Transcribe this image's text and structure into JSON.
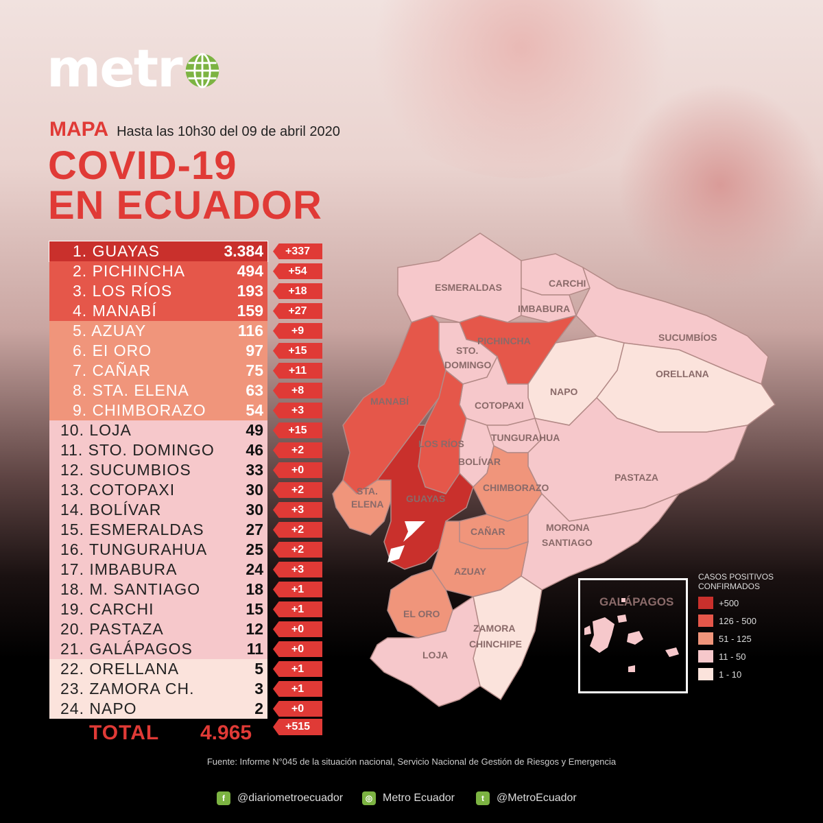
{
  "brand": {
    "logo_text": "metr",
    "logo_globe": "globe-icon"
  },
  "header": {
    "mapa": "MAPA",
    "subtitle": "Hasta las 10h30 del 09 de abril 2020",
    "title_line1": "COVID-19",
    "title_line2": "EN ECUADOR"
  },
  "colors": {
    "c500": "#c9302c",
    "c126": "#e5574a",
    "c51": "#f0957b",
    "c11": "#f6c8cb",
    "c1": "#fbe3dc",
    "accent": "#e03a36"
  },
  "rows": [
    {
      "label": "1. GUAYAS",
      "value": "3.384",
      "delta": "+337",
      "tier": "c500"
    },
    {
      "label": "2. PICHINCHA",
      "value": "494",
      "delta": "+54",
      "tier": "c126"
    },
    {
      "label": "3. LOS RÍOS",
      "value": "193",
      "delta": "+18",
      "tier": "c126"
    },
    {
      "label": "4. MANABÍ",
      "value": "159",
      "delta": "+27",
      "tier": "c126"
    },
    {
      "label": "5. AZUAY",
      "value": "116",
      "delta": "+9",
      "tier": "c51"
    },
    {
      "label": "6. EI ORO",
      "value": "97",
      "delta": "+15",
      "tier": "c51"
    },
    {
      "label": "7. CAÑAR",
      "value": "75",
      "delta": "+11",
      "tier": "c51"
    },
    {
      "label": "8. STA. ELENA",
      "value": "63",
      "delta": "+8",
      "tier": "c51"
    },
    {
      "label": "9. CHIMBORAZO",
      "value": "54",
      "delta": "+3",
      "tier": "c51"
    },
    {
      "label": "10. LOJA",
      "value": "49",
      "delta": "+15",
      "tier": "c11"
    },
    {
      "label": "11. STO. DOMINGO",
      "value": "46",
      "delta": "+2",
      "tier": "c11"
    },
    {
      "label": "12. SUCUMBIOS",
      "value": "33",
      "delta": "+0",
      "tier": "c11"
    },
    {
      "label": "13. COTOPAXI",
      "value": "30",
      "delta": "+2",
      "tier": "c11"
    },
    {
      "label": "14. BOLÍVAR",
      "value": "30",
      "delta": "+3",
      "tier": "c11"
    },
    {
      "label": "15. ESMERALDAS",
      "value": "27",
      "delta": "+2",
      "tier": "c11"
    },
    {
      "label": "16. TUNGURAHUA",
      "value": "25",
      "delta": "+2",
      "tier": "c11"
    },
    {
      "label": "17. IMBABURA",
      "value": "24",
      "delta": "+3",
      "tier": "c11"
    },
    {
      "label": "18. M. SANTIAGO",
      "value": "18",
      "delta": "+1",
      "tier": "c11"
    },
    {
      "label": "19. CARCHI",
      "value": "15",
      "delta": "+1",
      "tier": "c11"
    },
    {
      "label": "20. PASTAZA",
      "value": "12",
      "delta": "+0",
      "tier": "c11"
    },
    {
      "label": "21. GALÁPAGOS",
      "value": "11",
      "delta": "+0",
      "tier": "c11"
    },
    {
      "label": "22. ORELLANA",
      "value": "5",
      "delta": "+1",
      "tier": "c1"
    },
    {
      "label": "23. ZAMORA CH.",
      "value": "3",
      "delta": "+1",
      "tier": "c1"
    },
    {
      "label": "24. NAPO",
      "value": "2",
      "delta": "+0",
      "tier": "c1"
    }
  ],
  "total": {
    "label": "TOTAL",
    "value": "4.965",
    "delta": "+515"
  },
  "map_labels": {
    "esmeraldas": "ESMERALDAS",
    "carchi": "CARCHI",
    "imbabura": "IMBABURA",
    "sucumbios": "SUCUMBÍOS",
    "pichincha": "PICHINCHA",
    "sto1": "STO.",
    "sto2": "DOMINGO",
    "napo": "NAPO",
    "orellana": "ORELLANA",
    "manabi": "MANABÍ",
    "cotopaxi": "COTOPAXI",
    "losrios": "LOS RÍOS",
    "tungurahua": "TUNGURAHUA",
    "bolivar": "BOLÍVAR",
    "pastaza": "PASTAZA",
    "sta1": "STA.",
    "sta2": "ELENA",
    "guayas": "GUAYAS",
    "chimborazo": "CHIMBORAZO",
    "canar": "CAÑAR",
    "morona1": "MORONA",
    "morona2": "SANTIAGO",
    "azuay": "AZUAY",
    "eloro": "EL ORO",
    "zamora1": "ZAMORA",
    "zamora2": "CHINCHIPE",
    "loja": "LOJA"
  },
  "galapagos": {
    "label": "GALÁPAGOS"
  },
  "legend": {
    "title_line1": "CASOS POSITIVOS",
    "title_line2": "CONFIRMADOS",
    "items": [
      {
        "label": "+500",
        "tier": "c500"
      },
      {
        "label": "126 - 500",
        "tier": "c126"
      },
      {
        "label": "51 - 125",
        "tier": "c51"
      },
      {
        "label": "11 - 50",
        "tier": "c11"
      },
      {
        "label": "1 - 10",
        "tier": "c1"
      }
    ]
  },
  "source": "Fuente: Informe N°045 de la situación nacional, Servicio Nacional de Gestión de Riesgos y Emergencia",
  "social": [
    {
      "icon": "facebook-icon",
      "glyph": "f",
      "handle": "@diariometroecuador"
    },
    {
      "icon": "instagram-icon",
      "glyph": "◎",
      "handle": "Metro Ecuador"
    },
    {
      "icon": "twitter-icon",
      "glyph": "t",
      "handle": "@MetroEcuador"
    }
  ]
}
